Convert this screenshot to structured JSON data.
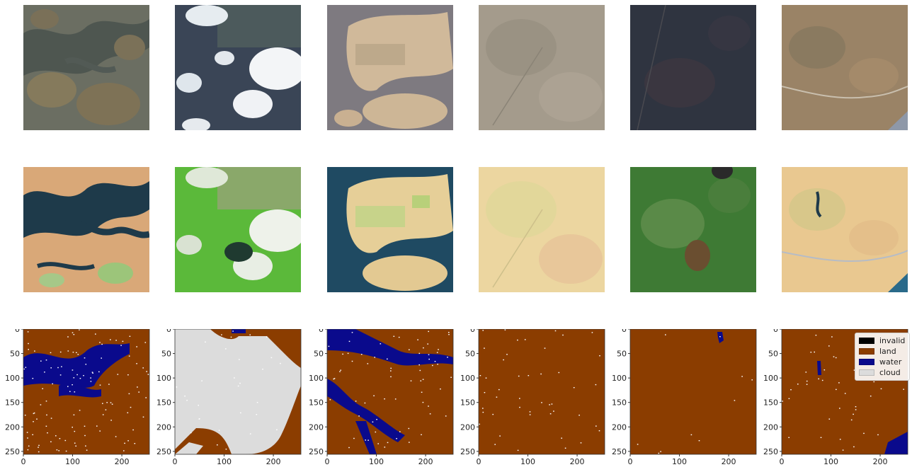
{
  "rows": {
    "true_color": [
      "Tile 1 true color",
      "Tile 2 true color",
      "Tile 3 true color",
      "Tile 4 true color",
      "Tile 5 true color",
      "Tile 6 true color"
    ],
    "false_color": [
      "Tile 1 false color",
      "Tile 2 false color",
      "Tile 3 false color",
      "Tile 4 false color",
      "Tile 5 false color",
      "Tile 6 false color"
    ]
  },
  "axes": {
    "y_ticks": [
      "0",
      "50",
      "100",
      "150",
      "200",
      "250"
    ],
    "x_ticks": [
      "0",
      "100",
      "200"
    ]
  },
  "legend": {
    "items": [
      {
        "label": "invalid",
        "color": "#000000"
      },
      {
        "label": "land",
        "color": "#8b3d00"
      },
      {
        "label": "water",
        "color": "#0a0a8c"
      },
      {
        "label": "cloud",
        "color": "#dcdcdc"
      }
    ]
  }
}
